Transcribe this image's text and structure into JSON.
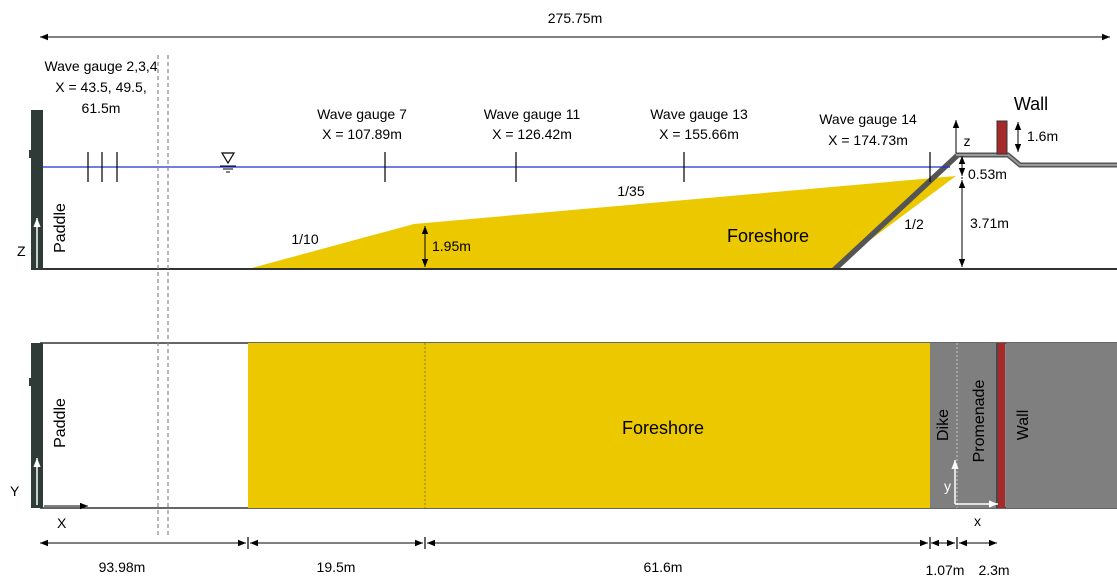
{
  "colors": {
    "foreshore": "#ecc800",
    "dike": "#7f7f7f",
    "wall": "#a52a2a",
    "paddle": "#2e3b36",
    "water": "#1f2fd0",
    "line": "#000000"
  },
  "dimensions": {
    "total": "275.75m",
    "d1": "93.98m",
    "d2": "19.5m",
    "d3": "61.6m",
    "d4": "1.07m",
    "d5": "2.3m"
  },
  "gauges": {
    "g234_title": "Wave gauge 2,3,4",
    "g234_line2": "X = 43.5, 49.5,",
    "g234_line3": "61.5m",
    "g7_title": "Wave gauge 7",
    "g7_x": "X = 107.89m",
    "g11_title": "Wave gauge 11",
    "g11_x": "X = 126.42m",
    "g13_title": "Wave gauge 13",
    "g13_x": "X = 155.66m",
    "g14_title": "Wave gauge 14",
    "g14_x": "X = 174.73m"
  },
  "side_view": {
    "paddle": "Paddle",
    "axis_z_upper": "Z",
    "axis_z_lower": "z",
    "slope_1_10": "1/10",
    "step_height": "1.95m",
    "slope_1_35": "1/35",
    "foreshore": "Foreshore",
    "slope_1_2": "1/2",
    "wall": "Wall",
    "wall_height": "1.6m",
    "freeboard": "0.53m",
    "water_depth": "3.71m"
  },
  "plan_view": {
    "paddle": "Paddle",
    "foreshore": "Foreshore",
    "dike": "Dike",
    "promenade": "Promenade",
    "wall": "Wall",
    "axis_Y": "Y",
    "axis_X": "X",
    "axis_y": "y",
    "axis_x": "x"
  }
}
